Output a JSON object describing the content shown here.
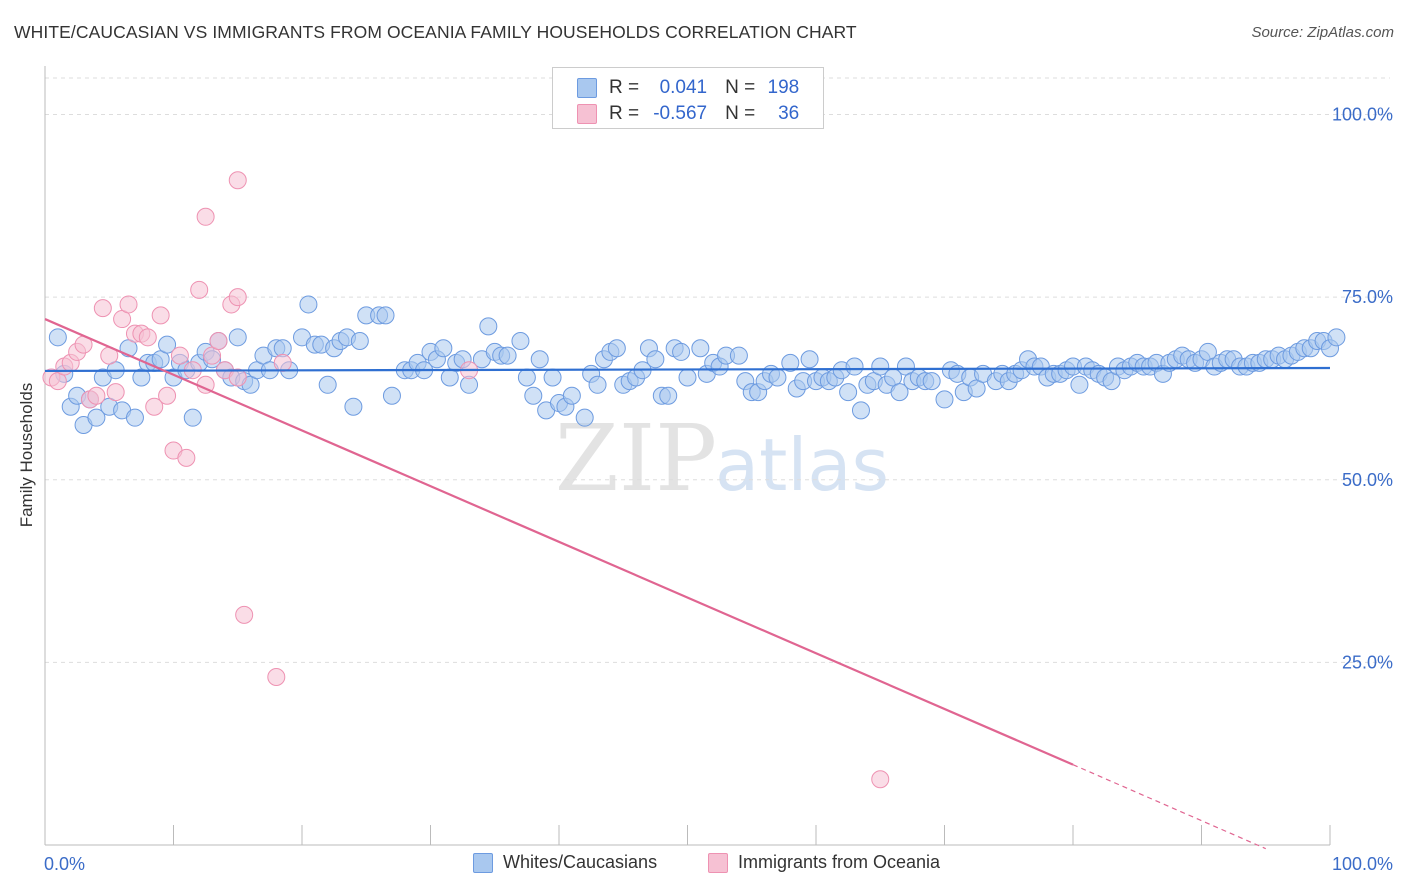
{
  "header": {
    "title": "WHITE/CAUCASIAN VS IMMIGRANTS FROM OCEANIA FAMILY HOUSEHOLDS CORRELATION CHART",
    "source": "Source: ZipAtlas.com"
  },
  "legend": {
    "rows": [
      {
        "r_label": "R =",
        "r_value": "0.041",
        "n_label": "N =",
        "n_value": "198"
      },
      {
        "r_label": "R =",
        "r_value": "-0.567",
        "n_label": "N =",
        "n_value": "36"
      }
    ]
  },
  "bottom_legend": {
    "items": [
      {
        "label": "Whites/Caucasians"
      },
      {
        "label": "Immigrants from Oceania"
      }
    ]
  },
  "colors": {
    "blue_fill": "#a9c8ef",
    "blue_stroke": "#6d9be0",
    "blue_line": "#2f6fd1",
    "pink_fill": "#f6c1d3",
    "pink_stroke": "#ee92b2",
    "pink_line": "#e06591",
    "tick_text": "#3b6cc8",
    "grid": "#dddddd"
  },
  "watermark": {
    "zip": "ZIP",
    "atlas": "atlas"
  },
  "chart_data": {
    "type": "scatter",
    "title": "WHITE/CAUCASIAN VS IMMIGRANTS FROM OCEANIA FAMILY HOUSEHOLDS CORRELATION CHART",
    "xlabel": "",
    "ylabel": "Family Households",
    "xlim": [
      0,
      100
    ],
    "ylim": [
      0,
      105
    ],
    "x_tick_labels": [
      "0.0%",
      "100.0%"
    ],
    "y_ticks": [
      {
        "value": 25,
        "label": "25.0%"
      },
      {
        "value": 50,
        "label": "50.0%"
      },
      {
        "value": 75,
        "label": "75.0%"
      },
      {
        "value": 100,
        "label": "100.0%"
      }
    ],
    "grid": true,
    "series": [
      {
        "name": "Whites/Caucasians",
        "color": "blue",
        "trend": {
          "x0": 0,
          "y0": 64.9,
          "x1": 100,
          "y1": 65.3
        },
        "points": [
          [
            1,
            69.5
          ],
          [
            1.5,
            64.5
          ],
          [
            2,
            60
          ],
          [
            2.5,
            61.5
          ],
          [
            3,
            57.5
          ],
          [
            3.5,
            61
          ],
          [
            4,
            58.5
          ],
          [
            4.5,
            64
          ],
          [
            5,
            60
          ],
          [
            5.5,
            65
          ],
          [
            6,
            59.5
          ],
          [
            6.5,
            68
          ],
          [
            7,
            58.5
          ],
          [
            7.5,
            64
          ],
          [
            8,
            66
          ],
          [
            8.5,
            66
          ],
          [
            9,
            66.5
          ],
          [
            9.5,
            68.5
          ],
          [
            10,
            64
          ],
          [
            10.5,
            66
          ],
          [
            11,
            65
          ],
          [
            11.5,
            58.5
          ],
          [
            12,
            66
          ],
          [
            12.5,
            67.5
          ],
          [
            13,
            66.5
          ],
          [
            13.5,
            69
          ],
          [
            14,
            65
          ],
          [
            14.5,
            64
          ],
          [
            15,
            69.5
          ],
          [
            15.5,
            63.5
          ],
          [
            16,
            63
          ],
          [
            16.5,
            65
          ],
          [
            17,
            67
          ],
          [
            17.5,
            65
          ],
          [
            18,
            68
          ],
          [
            18.5,
            68
          ],
          [
            19,
            65
          ],
          [
            20,
            69.5
          ],
          [
            20.5,
            74
          ],
          [
            21,
            68.5
          ],
          [
            21.5,
            68.5
          ],
          [
            22,
            63
          ],
          [
            22.5,
            68
          ],
          [
            23,
            69
          ],
          [
            23.5,
            69.5
          ],
          [
            24,
            60
          ],
          [
            24.5,
            69
          ],
          [
            25,
            72.5
          ],
          [
            26,
            72.5
          ],
          [
            26.5,
            72.5
          ],
          [
            27,
            61.5
          ],
          [
            28,
            65
          ],
          [
            28.5,
            65
          ],
          [
            29,
            66
          ],
          [
            29.5,
            65
          ],
          [
            30,
            67.5
          ],
          [
            30.5,
            66.5
          ],
          [
            31,
            68
          ],
          [
            31.5,
            64
          ],
          [
            32,
            66
          ],
          [
            32.5,
            66.5
          ],
          [
            33,
            63
          ],
          [
            34,
            66.5
          ],
          [
            34.5,
            71
          ],
          [
            35,
            67.5
          ],
          [
            35.5,
            67
          ],
          [
            36,
            67
          ],
          [
            37,
            69
          ],
          [
            37.5,
            64
          ],
          [
            38,
            61.5
          ],
          [
            38.5,
            66.5
          ],
          [
            39,
            59.5
          ],
          [
            39.5,
            64
          ],
          [
            40,
            60.5
          ],
          [
            40.5,
            60
          ],
          [
            41,
            61.5
          ],
          [
            42,
            58.5
          ],
          [
            42.5,
            64.5
          ],
          [
            43,
            63
          ],
          [
            43.5,
            66.5
          ],
          [
            44,
            67.5
          ],
          [
            44.5,
            68
          ],
          [
            45,
            63
          ],
          [
            45.5,
            63.5
          ],
          [
            46,
            64
          ],
          [
            46.5,
            65
          ],
          [
            47,
            68
          ],
          [
            47.5,
            66.5
          ],
          [
            48,
            61.5
          ],
          [
            48.5,
            61.5
          ],
          [
            49,
            68
          ],
          [
            49.5,
            67.5
          ],
          [
            50,
            64
          ],
          [
            51,
            68
          ],
          [
            51.5,
            64.5
          ],
          [
            52,
            66
          ],
          [
            52.5,
            65.5
          ],
          [
            53,
            67
          ],
          [
            54,
            67
          ],
          [
            54.5,
            63.5
          ],
          [
            55,
            62
          ],
          [
            55.5,
            62
          ],
          [
            56,
            63.5
          ],
          [
            56.5,
            64.5
          ],
          [
            57,
            64
          ],
          [
            58,
            66
          ],
          [
            58.5,
            62.5
          ],
          [
            59,
            63.5
          ],
          [
            59.5,
            66.5
          ],
          [
            60,
            63.5
          ],
          [
            60.5,
            64
          ],
          [
            61,
            63.5
          ],
          [
            61.5,
            64
          ],
          [
            62,
            65
          ],
          [
            62.5,
            62
          ],
          [
            63,
            65.5
          ],
          [
            63.5,
            59.5
          ],
          [
            64,
            63
          ],
          [
            64.5,
            63.5
          ],
          [
            65,
            65.5
          ],
          [
            65.5,
            63
          ],
          [
            66,
            64
          ],
          [
            66.5,
            62
          ],
          [
            67,
            65.5
          ],
          [
            67.5,
            63.5
          ],
          [
            68,
            64
          ],
          [
            68.5,
            63.5
          ],
          [
            69,
            63.5
          ],
          [
            70,
            61
          ],
          [
            70.5,
            65
          ],
          [
            71,
            64.5
          ],
          [
            71.5,
            62
          ],
          [
            72,
            64
          ],
          [
            72.5,
            62.5
          ],
          [
            73,
            64.5
          ],
          [
            74,
            63.5
          ],
          [
            74.5,
            64.5
          ],
          [
            75,
            63.5
          ],
          [
            75.5,
            64.5
          ],
          [
            76,
            65
          ],
          [
            76.5,
            66.5
          ],
          [
            77,
            65.5
          ],
          [
            77.5,
            65.5
          ],
          [
            78,
            64
          ],
          [
            78.5,
            64.5
          ],
          [
            79,
            64.5
          ],
          [
            79.5,
            65
          ],
          [
            80,
            65.5
          ],
          [
            80.5,
            63
          ],
          [
            81,
            65.5
          ],
          [
            81.5,
            65
          ],
          [
            82,
            64.5
          ],
          [
            82.5,
            64
          ],
          [
            83,
            63.5
          ],
          [
            83.5,
            65.5
          ],
          [
            84,
            65
          ],
          [
            84.5,
            65.5
          ],
          [
            85,
            66
          ],
          [
            85.5,
            65.5
          ],
          [
            86,
            65.5
          ],
          [
            86.5,
            66
          ],
          [
            87,
            64.5
          ],
          [
            87.5,
            66
          ],
          [
            88,
            66.5
          ],
          [
            88.5,
            67
          ],
          [
            89,
            66.5
          ],
          [
            89.5,
            66
          ],
          [
            90,
            66.5
          ],
          [
            90.5,
            67.5
          ],
          [
            91,
            65.5
          ],
          [
            91.5,
            66
          ],
          [
            92,
            66.5
          ],
          [
            92.5,
            66.5
          ],
          [
            93,
            65.5
          ],
          [
            93.5,
            65.5
          ],
          [
            94,
            66
          ],
          [
            94.5,
            66
          ],
          [
            95,
            66.5
          ],
          [
            95.5,
            66.5
          ],
          [
            96,
            67
          ],
          [
            96.5,
            66.5
          ],
          [
            97,
            67
          ],
          [
            97.5,
            67.5
          ],
          [
            98,
            68
          ],
          [
            98.5,
            68
          ],
          [
            99,
            69
          ],
          [
            99.5,
            69
          ],
          [
            100,
            68
          ],
          [
            100.5,
            69.5
          ]
        ]
      },
      {
        "name": "Immigrants from Oceania",
        "color": "pink",
        "trend": {
          "x0": 0,
          "y0": 72,
          "x1": 80,
          "y1": 11,
          "dashed_to_x": 95,
          "dashed_to_y": -0.5
        },
        "points": [
          [
            0.5,
            64
          ],
          [
            1,
            63.5
          ],
          [
            1.5,
            65.5
          ],
          [
            2,
            66
          ],
          [
            2.5,
            67.5
          ],
          [
            3,
            68.5
          ],
          [
            3.5,
            61
          ],
          [
            4,
            61.5
          ],
          [
            4.5,
            73.5
          ],
          [
            5,
            67
          ],
          [
            5.5,
            62
          ],
          [
            6,
            72
          ],
          [
            6.5,
            74
          ],
          [
            7,
            70
          ],
          [
            7.5,
            70
          ],
          [
            8,
            69.5
          ],
          [
            8.5,
            60
          ],
          [
            9,
            72.5
          ],
          [
            9.5,
            61.5
          ],
          [
            10,
            54
          ],
          [
            10.5,
            67
          ],
          [
            11,
            53
          ],
          [
            11.5,
            65
          ],
          [
            12,
            76
          ],
          [
            12.5,
            63
          ],
          [
            13,
            67
          ],
          [
            13.5,
            69
          ],
          [
            14,
            65
          ],
          [
            12.5,
            86
          ],
          [
            14.5,
            74
          ],
          [
            15,
            75
          ],
          [
            15,
            64
          ],
          [
            15.5,
            31.5
          ],
          [
            18,
            23
          ],
          [
            18.5,
            66
          ],
          [
            33,
            65
          ],
          [
            65,
            9
          ],
          [
            15,
            91
          ]
        ]
      }
    ]
  }
}
